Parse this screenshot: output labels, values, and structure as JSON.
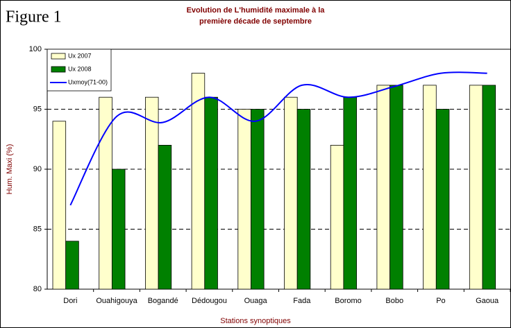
{
  "chart_data": {
    "type": "bar",
    "figure_label": "Figure 1",
    "title": [
      "Evolution de L'humidité maximale  à la",
      "première décade de septembre"
    ],
    "x_label": "Stations synoptiques",
    "y_label": "Hum. Maxi (%)",
    "categories": [
      "Dori",
      "Ouahigouya",
      "Bogandé",
      "Dédougou",
      "Ouaga",
      "Fada",
      "Boromo",
      "Bobo",
      "Po",
      "Gaoua"
    ],
    "series": [
      {
        "name": "Ux 2007",
        "type": "bar",
        "color": "#ffffcc",
        "values": [
          94,
          96,
          96,
          98,
          95,
          96,
          92,
          97,
          97,
          97
        ]
      },
      {
        "name": "Ux 2008",
        "type": "bar",
        "color": "#008000",
        "values": [
          84,
          90,
          92,
          96,
          95,
          95,
          96,
          97,
          95,
          97
        ]
      },
      {
        "name": "Uxmoy(71-00)",
        "type": "line",
        "color": "#0000ff",
        "values": [
          87,
          94.4,
          93.9,
          96,
          94,
          97,
          96,
          96.9,
          98,
          98
        ]
      }
    ],
    "ylim": [
      80,
      100
    ],
    "yticks": [
      80,
      85,
      90,
      95,
      100
    ],
    "grid": true,
    "legend": "top-left"
  }
}
